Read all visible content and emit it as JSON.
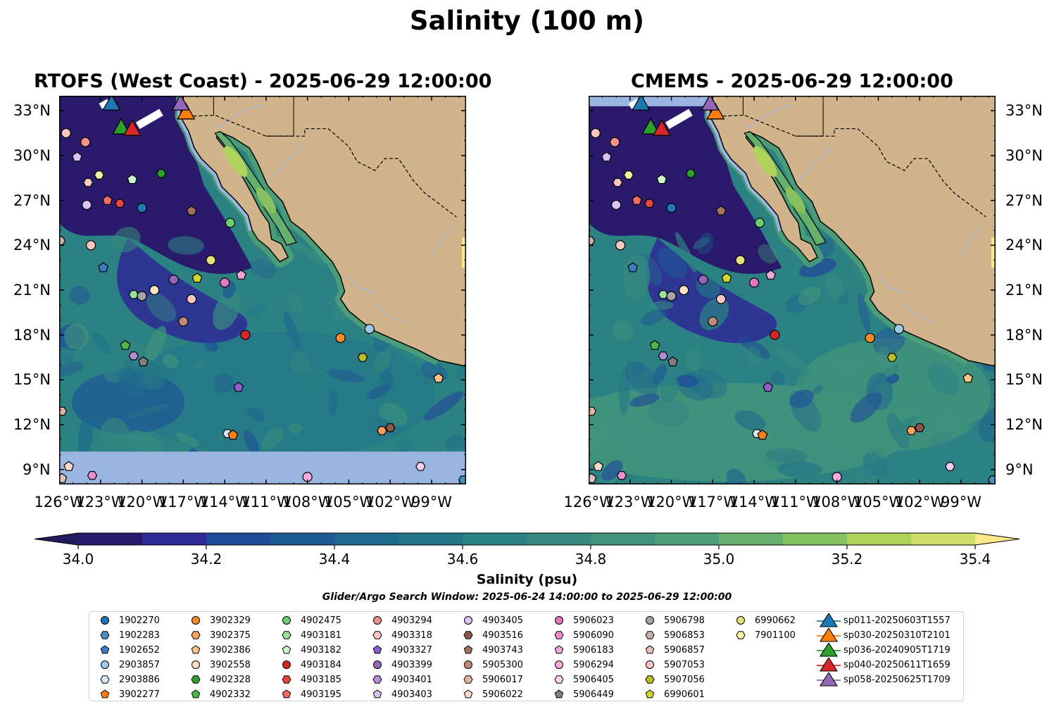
{
  "figure": {
    "title": "Salinity (100 m)",
    "panels": [
      {
        "title": "RTOFS (West Coast) - 2025-06-29 12:00:00",
        "model": "RTOFS"
      },
      {
        "title": "CMEMS - 2025-06-29 12:00:00",
        "model": "CMEMS"
      }
    ],
    "search_window": "Glider/Argo Search Window: 2025-06-24 14:00:00 to 2025-06-29 12:00:00"
  },
  "map_extent": {
    "lon": [
      -126,
      -96.5
    ],
    "lat": [
      8,
      34
    ]
  },
  "axes": {
    "lon_ticks": [
      {
        "value": -126,
        "label": "126°W"
      },
      {
        "value": -123,
        "label": "123°W"
      },
      {
        "value": -120,
        "label": "120°W"
      },
      {
        "value": -117,
        "label": "117°W"
      },
      {
        "value": -114,
        "label": "114°W"
      },
      {
        "value": -111,
        "label": "111°W"
      },
      {
        "value": -108,
        "label": "108°W"
      },
      {
        "value": -105,
        "label": "105°W"
      },
      {
        "value": -102,
        "label": "102°W"
      },
      {
        "value": -99,
        "label": "99°W"
      }
    ],
    "lat_ticks": [
      {
        "value": 9,
        "label": "9°N"
      },
      {
        "value": 12,
        "label": "12°N"
      },
      {
        "value": 15,
        "label": "15°N"
      },
      {
        "value": 18,
        "label": "18°N"
      },
      {
        "value": 21,
        "label": "21°N"
      },
      {
        "value": 24,
        "label": "24°N"
      },
      {
        "value": 27,
        "label": "27°N"
      },
      {
        "value": 30,
        "label": "30°N"
      },
      {
        "value": 33,
        "label": "33°N"
      }
    ]
  },
  "colorbar": {
    "label": "Salinity (psu)",
    "min": 34.0,
    "max": 35.4,
    "step": 0.1,
    "extend": "both",
    "ticks": [
      {
        "value": 34.0,
        "label": "34.0"
      },
      {
        "value": 34.2,
        "label": "34.2"
      },
      {
        "value": 34.4,
        "label": "34.4"
      },
      {
        "value": 34.6,
        "label": "34.6"
      },
      {
        "value": 34.8,
        "label": "34.8"
      },
      {
        "value": 35.0,
        "label": "35.0"
      },
      {
        "value": 35.2,
        "label": "35.2"
      },
      {
        "value": 35.4,
        "label": "35.4"
      }
    ],
    "colors": [
      "#2a1a6c",
      "#2e2a96",
      "#1f4b9a",
      "#1f5b93",
      "#1e6a8d",
      "#247687",
      "#2c8183",
      "#35897f",
      "#41947b",
      "#4e9f78",
      "#66b06f",
      "#85c15f",
      "#aed25a",
      "#cedd6a"
    ],
    "under_color": "#221b5c",
    "over_color": "#fbe88a"
  },
  "colors": {
    "land": "#d2b48c",
    "no_data": "#9ab5e0",
    "ocean_low": "#2a1a6c"
  },
  "floats": [
    {
      "id": "1902270",
      "lon": -120,
      "lat": 26.5,
      "marker": "circle",
      "color": "#1f77b4"
    },
    {
      "id": "1902283",
      "lon": -96.7,
      "lat": 8.3,
      "marker": "hexagon",
      "color": "#4a8ec2"
    },
    {
      "id": "1902652",
      "lon": -122.8,
      "lat": 22.5,
      "marker": "pentagon",
      "color": "#3a7ebf"
    },
    {
      "id": "2903857",
      "lon": -103.5,
      "lat": 18.4,
      "marker": "circle",
      "color": "#9ecae9"
    },
    {
      "id": "2903886",
      "lon": -113.8,
      "lat": 11.4,
      "marker": "hexagon",
      "color": "#d6eaf8"
    },
    {
      "id": "3902277",
      "lon": -113.4,
      "lat": 11.3,
      "marker": "pentagon",
      "color": "#ff7f0e"
    },
    {
      "id": "3902329",
      "lon": -105.6,
      "lat": 17.8,
      "marker": "circle",
      "color": "#ff8c28"
    },
    {
      "id": "3902375",
      "lon": -102.6,
      "lat": 11.6,
      "marker": "hexagon",
      "color": "#ffa35a"
    },
    {
      "id": "3902386",
      "lon": -98.5,
      "lat": 15.1,
      "marker": "pentagon",
      "color": "#ffc58a"
    },
    {
      "id": "3902558",
      "lon": -119.1,
      "lat": 21.0,
      "marker": "circle",
      "color": "#ffe3c8"
    },
    {
      "id": "4902328",
      "lon": -118.6,
      "lat": 28.8,
      "marker": "hexagon",
      "color": "#2ca02c"
    },
    {
      "id": "4902332",
      "lon": -121.2,
      "lat": 17.3,
      "marker": "pentagon",
      "color": "#4ab84a"
    },
    {
      "id": "4902475",
      "lon": -113.6,
      "lat": 25.5,
      "marker": "circle",
      "color": "#6fcc6f"
    },
    {
      "id": "4903181",
      "lon": -120.6,
      "lat": 20.7,
      "marker": "hexagon",
      "color": "#9be39b"
    },
    {
      "id": "4903182",
      "lon": -120.7,
      "lat": 28.4,
      "marker": "pentagon",
      "color": "#ccf5cc"
    },
    {
      "id": "4903184",
      "lon": -112.5,
      "lat": 18.0,
      "marker": "circle",
      "color": "#d62728"
    },
    {
      "id": "4903185",
      "lon": -121.6,
      "lat": 26.8,
      "marker": "hexagon",
      "color": "#e5443f"
    },
    {
      "id": "4903195",
      "lon": -122.5,
      "lat": 27.0,
      "marker": "pentagon",
      "color": "#f06b61"
    },
    {
      "id": "4903294",
      "lon": -124.1,
      "lat": 30.9,
      "marker": "circle",
      "color": "#f3918a"
    },
    {
      "id": "4903318",
      "lon": -123.9,
      "lat": 28.2,
      "marker": "hexagon",
      "color": "#fbc8c3"
    },
    {
      "id": "4903327",
      "lon": -113.0,
      "lat": 14.5,
      "marker": "pentagon",
      "color": "#8c5ec9"
    },
    {
      "id": "4903399",
      "lon": -117.7,
      "lat": 21.7,
      "marker": "circle",
      "color": "#9467bd"
    },
    {
      "id": "4903401",
      "lon": -120.6,
      "lat": 16.6,
      "marker": "hexagon",
      "color": "#b28cd9"
    },
    {
      "id": "4903403",
      "lon": -124.7,
      "lat": 29.9,
      "marker": "pentagon",
      "color": "#d9c0f0"
    },
    {
      "id": "4903405",
      "lon": -124.0,
      "lat": 26.7,
      "marker": "circle",
      "color": "#dcc4f4"
    },
    {
      "id": "4903516",
      "lon": -102.0,
      "lat": 11.8,
      "marker": "hexagon",
      "color": "#8c564b"
    },
    {
      "id": "4903743",
      "lon": -116.4,
      "lat": 26.3,
      "marker": "pentagon",
      "color": "#a57262"
    },
    {
      "id": "5905300",
      "lon": -117.0,
      "lat": 18.9,
      "marker": "circle",
      "color": "#c08a7a"
    },
    {
      "id": "5906017",
      "lon": -125.8,
      "lat": 12.9,
      "marker": "hexagon",
      "color": "#e2b2a4"
    },
    {
      "id": "5906022",
      "lon": -125.3,
      "lat": 9.2,
      "marker": "pentagon",
      "color": "#ffd9cc"
    },
    {
      "id": "5906023",
      "lon": -114.0,
      "lat": 21.5,
      "marker": "circle",
      "color": "#e377c2"
    },
    {
      "id": "5906090",
      "lon": -123.6,
      "lat": 8.6,
      "marker": "hexagon",
      "color": "#ec8fd0"
    },
    {
      "id": "5906183",
      "lon": -112.8,
      "lat": 22.0,
      "marker": "pentagon",
      "color": "#f2a7dc"
    },
    {
      "id": "5906294",
      "lon": -108.0,
      "lat": 8.5,
      "marker": "circle",
      "color": "#f7a9e0"
    },
    {
      "id": "5906405",
      "lon": -99.8,
      "lat": 9.2,
      "marker": "hexagon",
      "color": "#fbcdee"
    },
    {
      "id": "5906449",
      "lon": -119.9,
      "lat": 16.2,
      "marker": "pentagon",
      "color": "#7f7f7f"
    },
    {
      "id": "5906798",
      "lon": -120.0,
      "lat": 20.6,
      "marker": "circle",
      "color": "#a5a5a5"
    },
    {
      "id": "5906853",
      "lon": -125.9,
      "lat": 24.3,
      "marker": "hexagon",
      "color": "#c7b0a8"
    },
    {
      "id": "5906857",
      "lon": -125.8,
      "lat": 8.4,
      "marker": "pentagon",
      "color": "#e3c2b8"
    },
    {
      "id": "5907053",
      "lon": -116.4,
      "lat": 20.4,
      "marker": "circle",
      "color": "#fcc7c2"
    },
    {
      "id": "5907056",
      "lon": -104.0,
      "lat": 16.5,
      "marker": "hexagon",
      "color": "#bcbd22"
    },
    {
      "id": "6990601",
      "lon": -116.0,
      "lat": 21.8,
      "marker": "pentagon",
      "color": "#d6d52e"
    },
    {
      "id": "6990662",
      "lon": -115.0,
      "lat": 23.0,
      "marker": "circle",
      "color": "#e2e27a"
    },
    {
      "id": "7901100",
      "lon": -123.1,
      "lat": 28.7,
      "marker": "hexagon",
      "color": "#f5f5a0"
    },
    {
      "id": "",
      "lon": -125.5,
      "lat": 31.5,
      "marker": "circle",
      "color": "#fcc7c2"
    },
    {
      "id": "",
      "lon": -123.7,
      "lat": 24.0,
      "marker": "circle",
      "color": "#fcc7c2"
    }
  ],
  "gliders": [
    {
      "id": "sp011-20250603T1557",
      "color": "#1f77b4",
      "lon": -122.2,
      "lat": 33.5
    },
    {
      "id": "sp030-20250310T2101",
      "color": "#ff7f0e",
      "lon": -116.8,
      "lat": 32.9
    },
    {
      "id": "sp036-20240905T1719",
      "color": "#2ca02c",
      "lon": -121.5,
      "lat": 31.9
    },
    {
      "id": "sp040-20250611T1659",
      "color": "#d62728",
      "lon": -120.7,
      "lat": 31.8
    },
    {
      "id": "sp058-20250625T1709",
      "color": "#9467bd",
      "lon": -117.2,
      "lat": 33.5
    }
  ]
}
